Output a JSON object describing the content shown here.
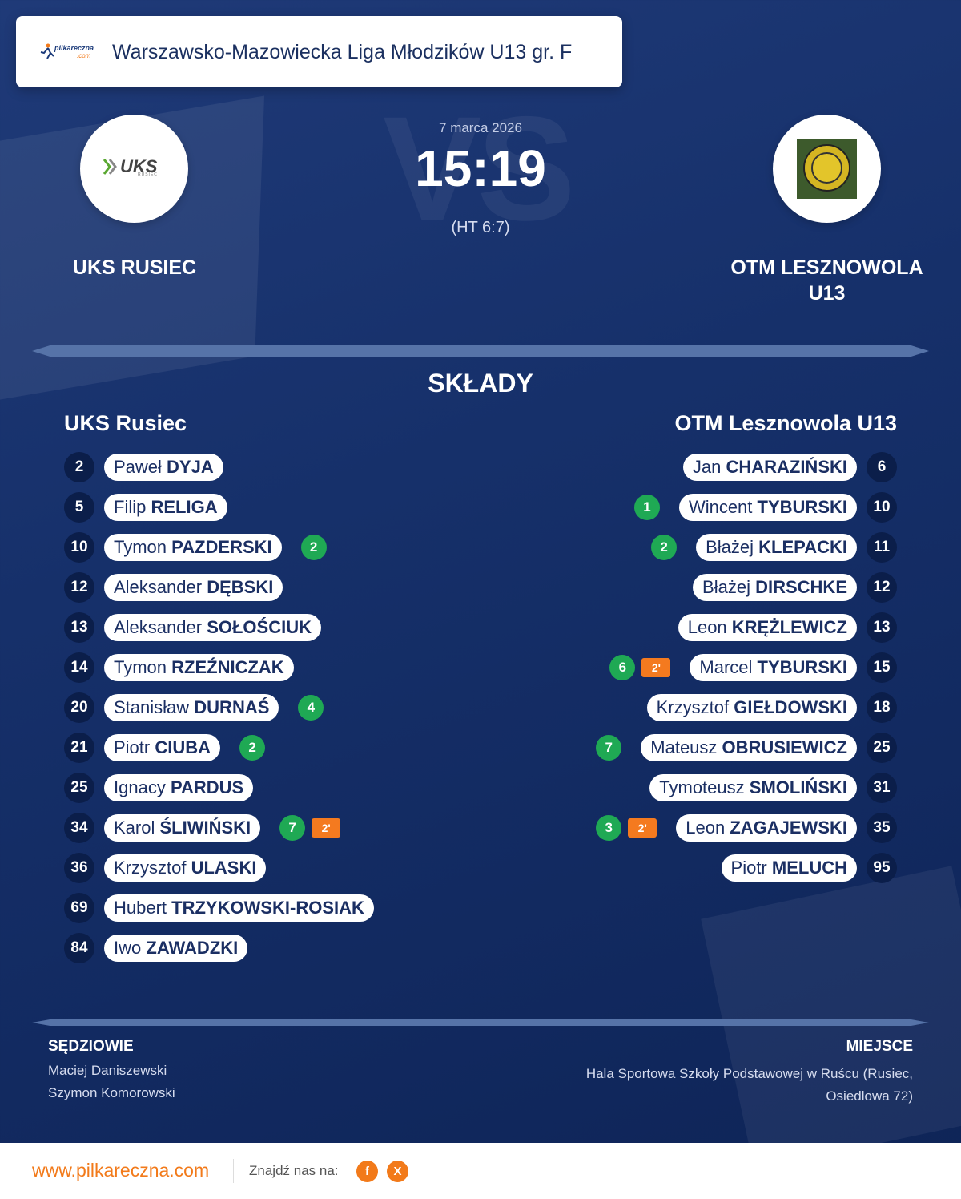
{
  "header": {
    "league": "Warszawsko-Mazowiecka Liga Młodzików U13 gr. F",
    "logo_text": "pilkareczna",
    "logo_domain": ".com"
  },
  "match": {
    "date": "7 marca 2026",
    "score": "15:19",
    "halftime": "(HT 6:7)",
    "watermark": "VS"
  },
  "home": {
    "name": "UKS RUSIEC",
    "logo_text": "UKS",
    "logo_subtext": "RUSIEC",
    "lineup_title": "UKS Rusiec",
    "players": [
      {
        "number": "2",
        "first": "Paweł",
        "last": "DYJA",
        "goals": "",
        "penalty": ""
      },
      {
        "number": "5",
        "first": "Filip",
        "last": "RELIGA",
        "goals": "",
        "penalty": ""
      },
      {
        "number": "10",
        "first": "Tymon",
        "last": "PAZDERSKI",
        "goals": "2",
        "penalty": ""
      },
      {
        "number": "12",
        "first": "Aleksander",
        "last": "DĘBSKI",
        "goals": "",
        "penalty": ""
      },
      {
        "number": "13",
        "first": "Aleksander",
        "last": "SOŁOŚCIUK",
        "goals": "",
        "penalty": ""
      },
      {
        "number": "14",
        "first": "Tymon",
        "last": "RZEŹNICZAK",
        "goals": "",
        "penalty": ""
      },
      {
        "number": "20",
        "first": "Stanisław",
        "last": "DURNAŚ",
        "goals": "4",
        "penalty": ""
      },
      {
        "number": "21",
        "first": "Piotr",
        "last": "CIUBA",
        "goals": "2",
        "penalty": ""
      },
      {
        "number": "25",
        "first": "Ignacy",
        "last": "PARDUS",
        "goals": "",
        "penalty": ""
      },
      {
        "number": "34",
        "first": "Karol",
        "last": "ŚLIWIŃSKI",
        "goals": "7",
        "penalty": "2'"
      },
      {
        "number": "36",
        "first": "Krzysztof",
        "last": "ULASKI",
        "goals": "",
        "penalty": ""
      },
      {
        "number": "69",
        "first": "Hubert",
        "last": "TRZYKOWSKI-ROSIAK",
        "goals": "",
        "penalty": ""
      },
      {
        "number": "84",
        "first": "Iwo",
        "last": "ZAWADZKI",
        "goals": "",
        "penalty": ""
      }
    ]
  },
  "away": {
    "name": "OTM LESZNOWOLA U13",
    "lineup_title": "OTM Lesznowola U13",
    "players": [
      {
        "number": "6",
        "first": "Jan",
        "last": "CHARAZIŃSKI",
        "goals": "",
        "penalty": ""
      },
      {
        "number": "10",
        "first": "Wincent",
        "last": "TYBURSKI",
        "goals": "1",
        "penalty": ""
      },
      {
        "number": "11",
        "first": "Błażej",
        "last": "KLEPACKI",
        "goals": "2",
        "penalty": ""
      },
      {
        "number": "12",
        "first": "Błażej",
        "last": "DIRSCHKE",
        "goals": "",
        "penalty": ""
      },
      {
        "number": "13",
        "first": "Leon",
        "last": "KRĘŻLEWICZ",
        "goals": "",
        "penalty": ""
      },
      {
        "number": "15",
        "first": "Marcel",
        "last": "TYBURSKI",
        "goals": "6",
        "penalty": "2'"
      },
      {
        "number": "18",
        "first": "Krzysztof",
        "last": "GIEŁDOWSKI",
        "goals": "",
        "penalty": ""
      },
      {
        "number": "25",
        "first": "Mateusz",
        "last": "OBRUSIEWICZ",
        "goals": "7",
        "penalty": ""
      },
      {
        "number": "31",
        "first": "Tymoteusz",
        "last": "SMOLIŃSKI",
        "goals": "",
        "penalty": ""
      },
      {
        "number": "35",
        "first": "Leon",
        "last": "ZAGAJEWSKI",
        "goals": "3",
        "penalty": "2'"
      },
      {
        "number": "95",
        "first": "Piotr",
        "last": "MELUCH",
        "goals": "",
        "penalty": ""
      }
    ]
  },
  "lineups_title": "SKŁADY",
  "referees": {
    "title": "SĘDZIOWIE",
    "names": [
      "Maciej Daniszewski",
      "Szymon Komorowski"
    ]
  },
  "venue": {
    "title": "MIEJSCE",
    "text": "Hala Sportowa Szkoły Podstawowej w Ruścu (Rusiec, Osiedlowa 72)"
  },
  "footer": {
    "site": "www.pilkareczna.com",
    "find_us": "Znajdź nas na:",
    "social": [
      "f",
      "X"
    ]
  },
  "colors": {
    "background": "#16306a",
    "goal_badge": "#1fa954",
    "penalty_badge": "#f47a1f",
    "brand_orange": "#f27a1a",
    "number_badge": "#0b1e4a"
  },
  "icons": {
    "goal": "goal-badge",
    "penalty": "two-minute-penalty-badge",
    "facebook": "facebook-icon",
    "x": "x-icon"
  }
}
